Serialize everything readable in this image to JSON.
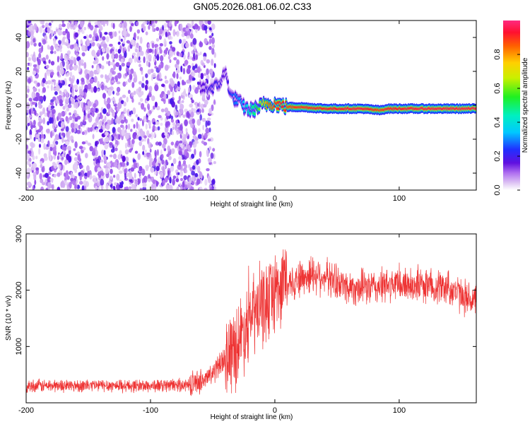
{
  "title": "GN05.2026.081.06.02.C33",
  "colors": {
    "snr_line": "#ee3333",
    "frame": "#000000"
  },
  "chart_data": [
    {
      "type": "heatmap",
      "name": "spectrogram",
      "xlabel": "Height of straight line (km)",
      "ylabel": "Frequency (Hz)",
      "xlim": [
        -200,
        162
      ],
      "ylim": [
        -50,
        50
      ],
      "x_ticks": [
        -200,
        -100,
        0,
        100
      ],
      "x_tick_labels": [
        "-200",
        "-100",
        "0",
        "100"
      ],
      "y_ticks": [
        -40,
        -20,
        0,
        20,
        40
      ],
      "y_tick_labels": [
        "-40",
        "-20",
        "0",
        "20",
        "40"
      ],
      "colorbar": {
        "label": "Normalized spectral amplitude",
        "range": [
          0,
          1
        ],
        "ticks": [
          0.0,
          0.2,
          0.4,
          0.6,
          0.8
        ],
        "tick_labels": [
          "0.0",
          "0.2",
          "0.4",
          "0.6",
          "0.8"
        ]
      },
      "noise_region_x": [
        -200,
        -60
      ],
      "noise_amplitude": 0.1,
      "carrier_track": [
        {
          "x": -60,
          "f": 10,
          "a": 0.15
        },
        {
          "x": -52,
          "f": 10,
          "a": 0.2
        },
        {
          "x": -45,
          "f": 12,
          "a": 0.2
        },
        {
          "x": -40,
          "f": 20,
          "a": 0.15
        },
        {
          "x": -35,
          "f": 5,
          "a": 0.25
        },
        {
          "x": -30,
          "f": 3,
          "a": 0.3
        },
        {
          "x": -25,
          "f": -1,
          "a": 0.35
        },
        {
          "x": -20,
          "f": -3,
          "a": 0.45
        },
        {
          "x": -15,
          "f": -2,
          "a": 0.5
        },
        {
          "x": -10,
          "f": 0,
          "a": 0.7
        },
        {
          "x": -5,
          "f": 1,
          "a": 0.85
        },
        {
          "x": 0,
          "f": 1,
          "a": 0.9
        },
        {
          "x": 5,
          "f": 0,
          "a": 0.92
        },
        {
          "x": 10,
          "f": -1,
          "a": 0.88
        },
        {
          "x": 20,
          "f": -1,
          "a": 0.9
        },
        {
          "x": 40,
          "f": -2,
          "a": 0.92
        },
        {
          "x": 70,
          "f": -2,
          "a": 0.95
        },
        {
          "x": 85,
          "f": -3,
          "a": 0.88
        },
        {
          "x": 90,
          "f": -2,
          "a": 0.92
        },
        {
          "x": 120,
          "f": -2,
          "a": 0.95
        },
        {
          "x": 162,
          "f": -2,
          "a": 0.95
        }
      ]
    },
    {
      "type": "line",
      "name": "snr",
      "xlabel": "Height of straight line (km)",
      "ylabel": "SNR (10 * v/v)",
      "xlim": [
        -200,
        162
      ],
      "ylim": [
        0,
        3000
      ],
      "x_ticks": [
        -200,
        -100,
        0,
        100
      ],
      "x_tick_labels": [
        "-200",
        "-100",
        "0",
        "100"
      ],
      "y_ticks": [
        1000,
        2000,
        3000
      ],
      "y_tick_labels": [
        "1000",
        "2000",
        "3000"
      ],
      "series": [
        {
          "name": "SNR",
          "x": [
            -200,
            -150,
            -100,
            -70,
            -55,
            -45,
            -38,
            -30,
            -25,
            -20,
            -15,
            -10,
            -5,
            0,
            5,
            10,
            20,
            30,
            40,
            50,
            60,
            80,
            100,
            120,
            140,
            150,
            162
          ],
          "y": [
            300,
            310,
            300,
            320,
            420,
            650,
            850,
            1050,
            1300,
            1500,
            1600,
            1700,
            1850,
            2000,
            2100,
            2150,
            2200,
            2300,
            2250,
            2150,
            2050,
            2050,
            2100,
            2100,
            2050,
            1900,
            1800
          ]
        }
      ]
    }
  ]
}
